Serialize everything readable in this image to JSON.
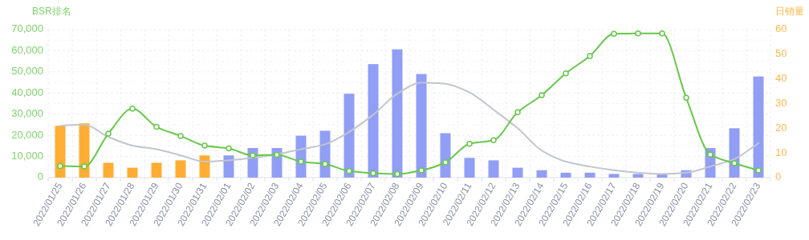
{
  "chart_data": {
    "type": "bar",
    "ylabel": "BSR排名",
    "y2label": "日销量",
    "categories": [
      "2022/01/25",
      "2022/01/26",
      "2022/01/27",
      "2022/01/28",
      "2022/01/29",
      "2022/01/30",
      "2022/01/31",
      "2022/02/01",
      "2022/02/02",
      "2022/02/03",
      "2022/02/04",
      "2022/02/05",
      "2022/02/06",
      "2022/02/07",
      "2022/02/08",
      "2022/02/09",
      "2022/02/10",
      "2022/02/11",
      "2022/02/12",
      "2022/02/13",
      "2022/02/14",
      "2022/02/15",
      "2022/02/16",
      "2022/02/17",
      "2022/02/18",
      "2022/02/19",
      "2022/02/20",
      "2022/02/21",
      "2022/02/22",
      "2022/02/23"
    ],
    "series": [
      {
        "axis": "y2",
        "colors": [
          "#ffad33",
          "#ffad33",
          "#ffad33",
          "#ffad33",
          "#ffad33",
          "#ffad33",
          "#ffad33",
          "#919ef5",
          "#919ef5",
          "#919ef5",
          "#919ef5",
          "#919ef5",
          "#919ef5",
          "#919ef5",
          "#919ef5",
          "#919ef5",
          "#919ef5",
          "#919ef5",
          "#919ef5",
          "#919ef5",
          "#919ef5",
          "#919ef5",
          "#919ef5",
          "#919ef5",
          "#919ef5",
          "#919ef5",
          "#919ef5",
          "#919ef5",
          "#919ef5",
          "#919ef5"
        ],
        "values": [
          21,
          22,
          6,
          4,
          6,
          7,
          9,
          9,
          12,
          12,
          17,
          19,
          34,
          46,
          52,
          42,
          18,
          8,
          7,
          4,
          3,
          2,
          2,
          1.5,
          1.5,
          1.5,
          3,
          12,
          20,
          41
        ]
      },
      {
        "type": "line",
        "axis": "y2",
        "color": "#c2c5cc",
        "marker": "none",
        "values": [
          21,
          21.5,
          16.5,
          13,
          11.5,
          9,
          6.5,
          7,
          8,
          9.5,
          11.5,
          13.5,
          18.5,
          25.5,
          34,
          38.5,
          38,
          34.5,
          27.5,
          20,
          11,
          6.5,
          4.5,
          3,
          2,
          1.5,
          2,
          4.5,
          7.5,
          14
        ]
      },
      {
        "type": "line",
        "axis": "y",
        "color": "#66c84b",
        "marker": "circle",
        "values": [
          5500,
          5300,
          20800,
          32600,
          24000,
          19700,
          15100,
          13800,
          10500,
          10800,
          7600,
          6400,
          3100,
          2100,
          1700,
          3400,
          7200,
          16000,
          17700,
          30900,
          39000,
          49300,
          57500,
          68000,
          68200,
          68200,
          37700,
          10900,
          6800,
          3400
        ]
      }
    ],
    "ylim": [
      0,
      70000
    ],
    "yticks": [
      0,
      {
        "value": 10000,
        "label": "10,000"
      },
      {
        "value": 20000,
        "label": "20,000"
      },
      {
        "value": 30000,
        "label": "30,000"
      },
      {
        "value": 40000,
        "label": "40,000"
      },
      {
        "value": 50000,
        "label": "50,000"
      },
      {
        "value": 60000,
        "label": "60,000"
      },
      {
        "value": 70000,
        "label": "70,000"
      }
    ],
    "y2lim": [
      0,
      60
    ],
    "y2ticks": [
      0,
      10,
      20,
      30,
      40,
      50,
      60
    ],
    "grid": true
  }
}
